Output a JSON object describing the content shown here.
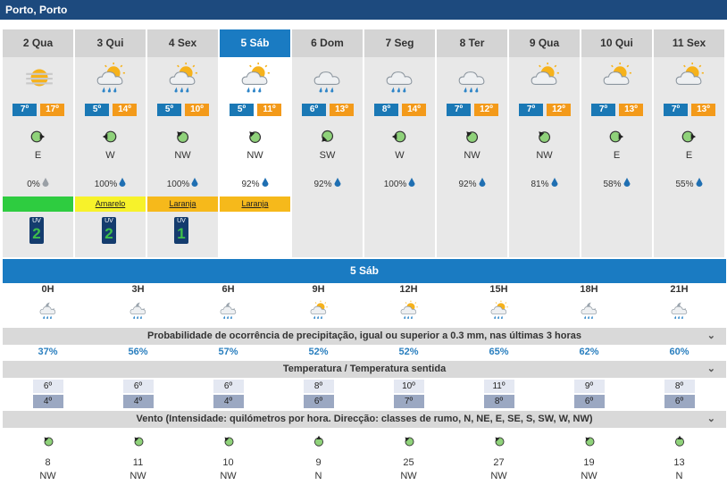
{
  "header": {
    "location": "Porto, Porto"
  },
  "days": [
    {
      "label": "2 Qua",
      "min": "7º",
      "max": "17º",
      "wind": "E",
      "precip": "0%",
      "warning": "",
      "warning_color": "#2ecc40",
      "uv": "2",
      "icon": "sun-haze-icon",
      "active": false
    },
    {
      "label": "3 Qui",
      "min": "5º",
      "max": "14º",
      "wind": "W",
      "precip": "100%",
      "warning": "Amarelo",
      "warning_color": "#f7f22a",
      "uv": "2",
      "icon": "sun-cloud-rain-icon",
      "active": false
    },
    {
      "label": "4 Sex",
      "min": "5º",
      "max": "10º",
      "wind": "NW",
      "precip": "100%",
      "warning": "Laranja",
      "warning_color": "#f6b91b",
      "uv": "1",
      "icon": "sun-cloud-rain-icon",
      "active": false
    },
    {
      "label": "5 Sáb",
      "min": "5º",
      "max": "11º",
      "wind": "NW",
      "precip": "92%",
      "warning": "Laranja",
      "warning_color": "#f6b91b",
      "uv": "",
      "icon": "sun-cloud-rain-icon",
      "active": true
    },
    {
      "label": "6 Dom",
      "min": "6º",
      "max": "13º",
      "wind": "SW",
      "precip": "92%",
      "warning": "",
      "warning_color": "",
      "uv": "",
      "icon": "cloud-rain-icon",
      "active": false
    },
    {
      "label": "7 Seg",
      "min": "8º",
      "max": "14º",
      "wind": "W",
      "precip": "100%",
      "warning": "",
      "warning_color": "",
      "uv": "",
      "icon": "cloud-rain-icon",
      "active": false
    },
    {
      "label": "8 Ter",
      "min": "7º",
      "max": "12º",
      "wind": "NW",
      "precip": "92%",
      "warning": "",
      "warning_color": "",
      "uv": "",
      "icon": "cloud-rain-icon",
      "active": false
    },
    {
      "label": "9 Qua",
      "min": "7º",
      "max": "12º",
      "wind": "NW",
      "precip": "81%",
      "warning": "",
      "warning_color": "",
      "uv": "",
      "icon": "sun-cloud-icon",
      "active": false
    },
    {
      "label": "10 Qui",
      "min": "7º",
      "max": "13º",
      "wind": "E",
      "precip": "58%",
      "warning": "",
      "warning_color": "",
      "uv": "",
      "icon": "sun-cloud-icon",
      "active": false
    },
    {
      "label": "11 Sex",
      "min": "7º",
      "max": "13º",
      "wind": "E",
      "precip": "55%",
      "warning": "",
      "warning_color": "",
      "uv": "",
      "icon": "sun-cloud-icon",
      "active": false
    }
  ],
  "uv_label": "UV",
  "detail": {
    "title": "5 Sáb",
    "hours": [
      "0H",
      "3H",
      "6H",
      "9H",
      "12H",
      "15H",
      "18H",
      "21H"
    ],
    "hour_icons": [
      "moon-cloud-rain-icon",
      "moon-cloud-rain-icon",
      "moon-cloud-rain-icon",
      "sun-cloud-rain-icon",
      "sun-cloud-rain-icon",
      "sun-cloud-rain-icon",
      "moon-cloud-rain-icon",
      "moon-cloud-rain-icon"
    ],
    "precip_title": "Probabilidade de ocorrência de precipitação, igual ou superior a 0.3 mm, nas últimas 3 horas",
    "precip": [
      "37%",
      "56%",
      "57%",
      "52%",
      "52%",
      "65%",
      "62%",
      "60%"
    ],
    "temp_title": "Temperatura / Temperatura sentida",
    "temp": [
      "6º",
      "6º",
      "6º",
      "8º",
      "10º",
      "11º",
      "9º",
      "8º"
    ],
    "feels": [
      "4º",
      "4º",
      "4º",
      "6º",
      "7º",
      "8º",
      "6º",
      "6º"
    ],
    "wind_title": "Vento (Intensidade: quilómetros por hora. Direcção: classes de rumo, N, NE, E, SE, S, SW, W, NW)",
    "wind_speed": [
      "8",
      "11",
      "10",
      "9",
      "25",
      "27",
      "19",
      "13"
    ],
    "wind_dir": [
      "NW",
      "NW",
      "NW",
      "N",
      "NW",
      "NW",
      "NW",
      "N"
    ]
  }
}
